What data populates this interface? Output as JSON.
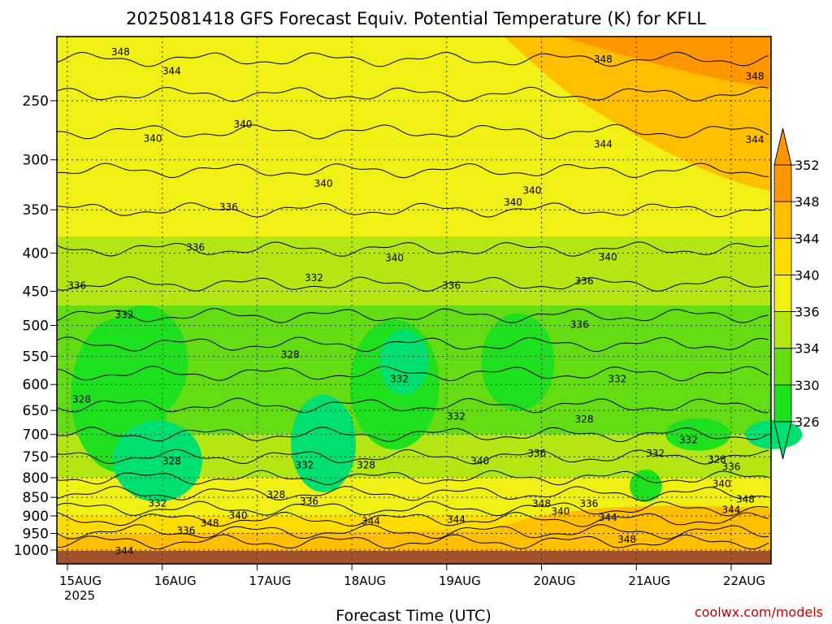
{
  "chart_data": {
    "type": "heatmap",
    "title": "2025081418 GFS Forecast Equiv. Potential Temperature (K) for KFLL",
    "xlabel": "Forecast Time (UTC)",
    "ylabel": "",
    "x_ticks": [
      "15AUG",
      "16AUG",
      "17AUG",
      "18AUG",
      "19AUG",
      "20AUG",
      "21AUG",
      "22AUG"
    ],
    "x_year": "2025",
    "y_ticks": [
      250,
      300,
      350,
      400,
      450,
      500,
      550,
      600,
      650,
      700,
      750,
      800,
      850,
      900,
      950,
      1000
    ],
    "ylim": [
      1000,
      200
    ],
    "y_scale": "log-pressure",
    "grid": true,
    "colorbar": {
      "levels": [
        326,
        330,
        334,
        336,
        340,
        344,
        348,
        352
      ],
      "colors": [
        "#00e070",
        "#1ee01e",
        "#64dc14",
        "#b4e614",
        "#f0f014",
        "#ffdc00",
        "#ffbe00",
        "#ff9600"
      ]
    },
    "contour_labels": [
      {
        "t": 0.56,
        "p": 215,
        "v": "348"
      },
      {
        "t": 1.1,
        "p": 228,
        "v": "344"
      },
      {
        "t": 0.9,
        "p": 281,
        "v": "340"
      },
      {
        "t": 1.85,
        "p": 269,
        "v": "340"
      },
      {
        "t": 2.7,
        "p": 323,
        "v": "340"
      },
      {
        "t": 1.7,
        "p": 347,
        "v": "336"
      },
      {
        "t": 1.35,
        "p": 393,
        "v": "336"
      },
      {
        "t": 0.1,
        "p": 442,
        "v": "336"
      },
      {
        "t": 0.6,
        "p": 484,
        "v": "332"
      },
      {
        "t": 2.6,
        "p": 432,
        "v": "332"
      },
      {
        "t": 3.45,
        "p": 406,
        "v": "340"
      },
      {
        "t": 4.7,
        "p": 342,
        "v": "340"
      },
      {
        "t": 5.65,
        "p": 220,
        "v": "348"
      },
      {
        "t": 5.65,
        "p": 286,
        "v": "344"
      },
      {
        "t": 7.25,
        "p": 232,
        "v": "348"
      },
      {
        "t": 7.25,
        "p": 282,
        "v": "344"
      },
      {
        "t": 4.9,
        "p": 330,
        "v": "340"
      },
      {
        "t": 5.7,
        "p": 405,
        "v": "340"
      },
      {
        "t": 4.05,
        "p": 442,
        "v": "336"
      },
      {
        "t": 5.45,
        "p": 436,
        "v": "336"
      },
      {
        "t": 5.4,
        "p": 499,
        "v": "336"
      },
      {
        "t": 2.35,
        "p": 547,
        "v": "328"
      },
      {
        "t": 3.5,
        "p": 590,
        "v": "332"
      },
      {
        "t": 5.8,
        "p": 590,
        "v": "332"
      },
      {
        "t": 0.15,
        "p": 628,
        "v": "328"
      },
      {
        "t": 4.1,
        "p": 662,
        "v": "332"
      },
      {
        "t": 5.45,
        "p": 668,
        "v": "328"
      },
      {
        "t": 1.1,
        "p": 760,
        "v": "328"
      },
      {
        "t": 2.5,
        "p": 770,
        "v": "332"
      },
      {
        "t": 3.15,
        "p": 770,
        "v": "328"
      },
      {
        "t": 4.35,
        "p": 760,
        "v": "340"
      },
      {
        "t": 4.95,
        "p": 742,
        "v": "336"
      },
      {
        "t": 6.2,
        "p": 742,
        "v": "332"
      },
      {
        "t": 6.55,
        "p": 712,
        "v": "332"
      },
      {
        "t": 6.85,
        "p": 756,
        "v": "328"
      },
      {
        "t": 7.0,
        "p": 773,
        "v": "336"
      },
      {
        "t": 6.9,
        "p": 815,
        "v": "340"
      },
      {
        "t": 7.15,
        "p": 855,
        "v": "348"
      },
      {
        "t": 7.0,
        "p": 883,
        "v": "344"
      },
      {
        "t": 0.95,
        "p": 866,
        "v": "332"
      },
      {
        "t": 1.25,
        "p": 942,
        "v": "336"
      },
      {
        "t": 1.8,
        "p": 899,
        "v": "340"
      },
      {
        "t": 1.5,
        "p": 921,
        "v": "348"
      },
      {
        "t": 2.2,
        "p": 843,
        "v": "328"
      },
      {
        "t": 2.55,
        "p": 860,
        "v": "336"
      },
      {
        "t": 3.2,
        "p": 915,
        "v": "344"
      },
      {
        "t": 4.1,
        "p": 910,
        "v": "344"
      },
      {
        "t": 5.0,
        "p": 867,
        "v": "348"
      },
      {
        "t": 5.2,
        "p": 888,
        "v": "340"
      },
      {
        "t": 5.5,
        "p": 867,
        "v": "336"
      },
      {
        "t": 5.7,
        "p": 905,
        "v": "344"
      },
      {
        "t": 5.9,
        "p": 968,
        "v": "348"
      },
      {
        "t": 0.6,
        "p": 1002,
        "v": "344"
      }
    ],
    "watermark": "coolwx.com/models"
  }
}
